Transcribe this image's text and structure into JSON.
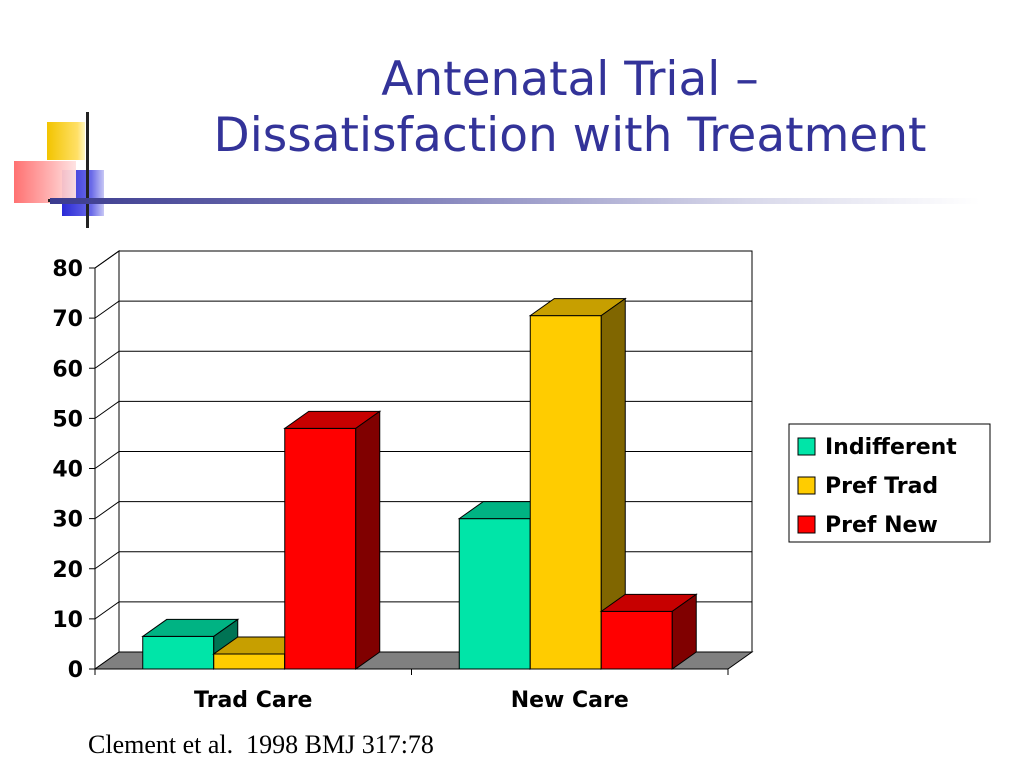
{
  "slide": {
    "title_line1": "Antenatal Trial –",
    "title_line2": "Dissatisfaction with Treatment",
    "source": "Clement et al.  1998 BMJ 317:78"
  },
  "colors": {
    "title": "#333399",
    "indifferent": "#00E5A8",
    "pref_trad": "#FFCC00",
    "pref_new": "#FF0000",
    "floor": "#808080"
  },
  "chart_data": {
    "type": "bar",
    "categories": [
      "Trad Care",
      "New Care"
    ],
    "series": [
      {
        "name": "Indifferent",
        "values": [
          6.5,
          30
        ]
      },
      {
        "name": "Pref Trad",
        "values": [
          3,
          70.5
        ]
      },
      {
        "name": "Pref New",
        "values": [
          48,
          11.5
        ]
      }
    ],
    "ylim": [
      0,
      80
    ],
    "yticks": [
      0,
      10,
      20,
      30,
      40,
      50,
      60,
      70,
      80
    ],
    "grid": true,
    "legend": "right",
    "three_d": true
  }
}
